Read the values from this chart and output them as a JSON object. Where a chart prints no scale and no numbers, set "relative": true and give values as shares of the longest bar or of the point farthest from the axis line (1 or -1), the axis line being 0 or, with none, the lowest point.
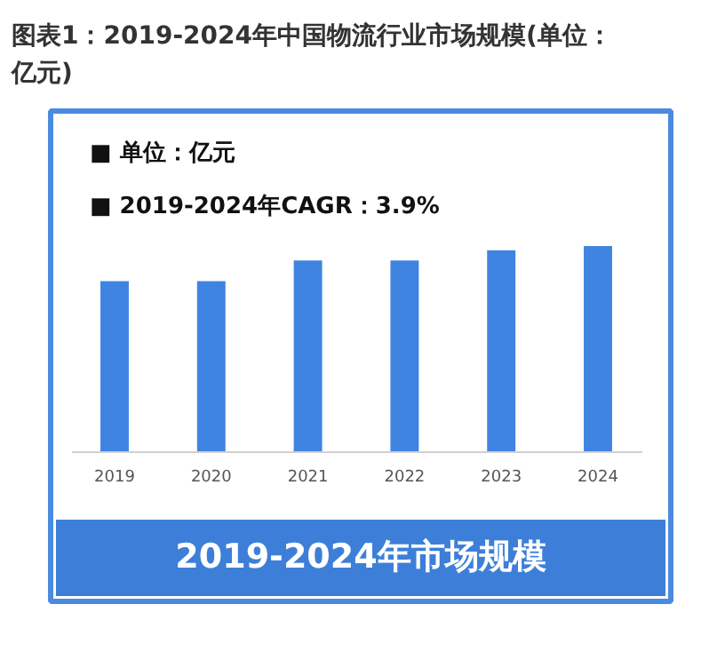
{
  "chart_data": {
    "type": "bar",
    "title": "图表1：2019-2024年中国物流行业市场规模(单位：亿元)",
    "categories": [
      "2019",
      "2020",
      "2021",
      "2022",
      "2023",
      "2024"
    ],
    "values": [
      0.83,
      0.83,
      0.93,
      0.93,
      0.98,
      1
    ],
    "color": "#3f84e0",
    "relative": true,
    "annotations": [
      "■  单位：亿元",
      "■  2019-2024年CAGR：3.9%",
      "2019-2024年市场规模"
    ]
  }
}
